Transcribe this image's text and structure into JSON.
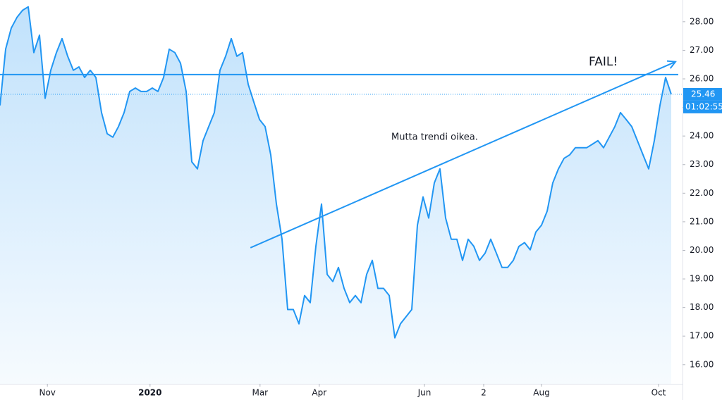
{
  "chart_data": {
    "type": "area",
    "series": [
      {
        "color": "#2196f3",
        "values": [
          25.07,
          27.04,
          27.78,
          28.15,
          28.4,
          28.52,
          26.92,
          27.53,
          25.32,
          26.3,
          26.92,
          27.41,
          26.79,
          26.3,
          26.42,
          26.05,
          26.3,
          26.05,
          24.82,
          24.08,
          23.96,
          24.33,
          24.82,
          25.56,
          25.68,
          25.56,
          25.56,
          25.68,
          25.56,
          26.05,
          27.04,
          26.92,
          26.55,
          25.56,
          23.1,
          22.85,
          23.84,
          24.33,
          24.82,
          26.3,
          26.79,
          27.41,
          26.79,
          26.92,
          25.81,
          25.19,
          24.58,
          24.33,
          23.34,
          21.62,
          20.39,
          17.93,
          17.93,
          17.43,
          18.42,
          18.17,
          20.14,
          21.62,
          19.16,
          18.91,
          19.4,
          18.67,
          18.17,
          18.42,
          18.17,
          19.16,
          19.65,
          18.67,
          18.67,
          18.42,
          16.94,
          17.43,
          17.68,
          17.93,
          20.88,
          21.87,
          21.13,
          22.36,
          22.85,
          21.13,
          20.39,
          20.39,
          19.65,
          20.39,
          20.14,
          19.65,
          19.9,
          20.39,
          19.9,
          19.4,
          19.4,
          19.65,
          20.14,
          20.27,
          20.02,
          20.64,
          20.88,
          21.37,
          22.36,
          22.85,
          23.22,
          23.34,
          23.59,
          23.59,
          23.59,
          23.71,
          23.84,
          23.59,
          23.96,
          24.33,
          24.82,
          24.58,
          24.33,
          23.84,
          23.34,
          22.85,
          23.84,
          25.07,
          26.05,
          25.46
        ]
      }
    ],
    "xlim": [
      0,
      121
    ],
    "xticks": [
      {
        "value": 8.4,
        "label": "Nov"
      },
      {
        "value": 26.6,
        "label": "2020"
      },
      {
        "value": 46.1,
        "label": "Mar"
      },
      {
        "value": 56.6,
        "label": "Apr"
      },
      {
        "value": 75.25,
        "label": "Jun"
      },
      {
        "value": 85.75,
        "label": "2"
      },
      {
        "value": 96,
        "label": "Aug"
      },
      {
        "value": 116.75,
        "label": "Oct"
      }
    ],
    "ylim": [
      15.33,
      28.76
    ],
    "yticks": [
      {
        "value": 16,
        "label": "16.00"
      },
      {
        "value": 17,
        "label": "17.00"
      },
      {
        "value": 18,
        "label": "18.00"
      },
      {
        "value": 19,
        "label": "19.00"
      },
      {
        "value": 20,
        "label": "20.00"
      },
      {
        "value": 21,
        "label": "21.00"
      },
      {
        "value": 22,
        "label": "22.00"
      },
      {
        "value": 23,
        "label": "23.00"
      },
      {
        "value": 24,
        "label": "24.00"
      },
      {
        "value": 25,
        "label": "25.00"
      },
      {
        "value": 26,
        "label": "26.00"
      },
      {
        "value": 27,
        "label": "27.00"
      },
      {
        "value": 28,
        "label": "28.00"
      }
    ],
    "hline": 26.15,
    "trendline": {
      "x": [
        44.4,
        119.75
      ],
      "y": [
        20.09,
        26.6
      ]
    },
    "annotations": [
      "FAIL!",
      "Mutta trendi oikea."
    ],
    "countdown": "01:02:55"
  }
}
